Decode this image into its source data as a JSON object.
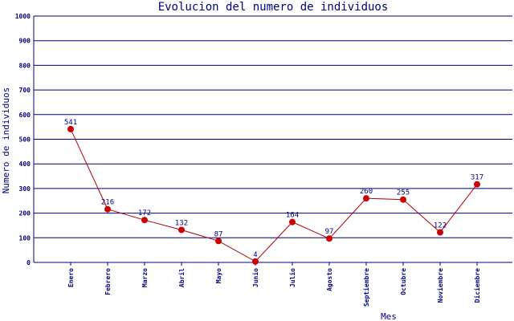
{
  "chart_data": {
    "type": "line",
    "title": "Evolucion del numero de individuos",
    "xlabel": "Mes",
    "ylabel": "Numero de individuos",
    "ylim": [
      0,
      1000
    ],
    "yticks": [
      0,
      100,
      200,
      300,
      400,
      500,
      600,
      700,
      800,
      900,
      1000
    ],
    "grid": true,
    "categories": [
      "Enero",
      "Febrero",
      "Marzo",
      "Abril",
      "Mayo",
      "Junio",
      "Julio",
      "Agosto",
      "Septiembre",
      "Octubre",
      "Noviembre",
      "Diciembre"
    ],
    "series": [
      {
        "values": [
          541,
          216,
          172,
          132,
          87,
          4,
          164,
          97,
          260,
          255,
          122,
          317
        ]
      }
    ],
    "colors": {
      "text": "#000080",
      "grid": "#000080",
      "line": "#b00000",
      "marker": "#cc0000"
    }
  }
}
